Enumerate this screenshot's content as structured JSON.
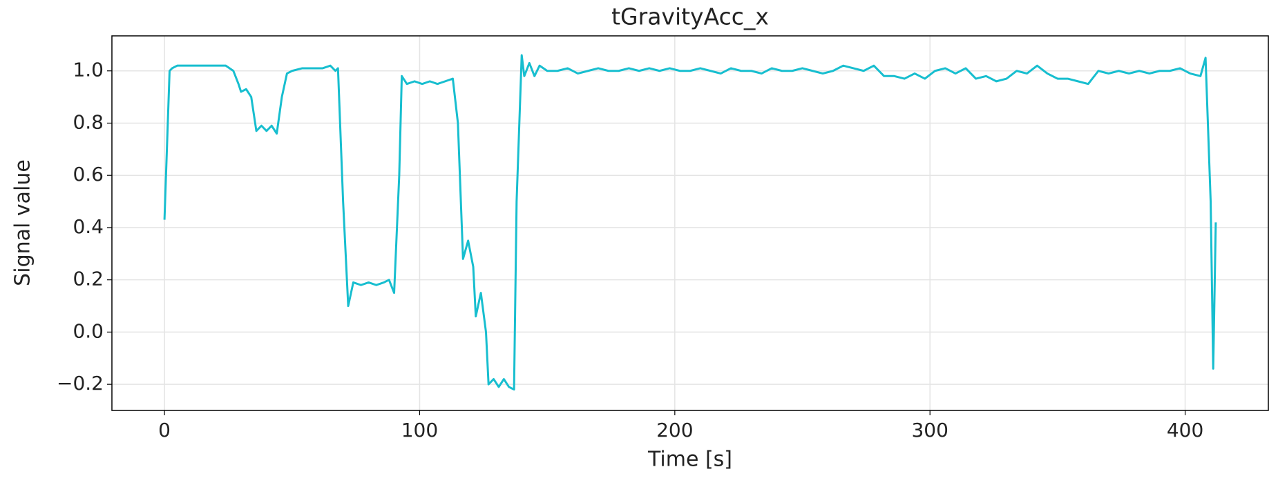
{
  "chart_data": {
    "type": "line",
    "title": "tGravityAcc_x",
    "xlabel": "Time [s]",
    "ylabel": "Signal value",
    "color": "#17becf",
    "grid": true,
    "xlim": [
      -20.6,
      432.6
    ],
    "ylim": [
      -0.3,
      1.134
    ],
    "xticks": [
      0,
      100,
      200,
      300,
      400
    ],
    "yticks": [
      {
        "value": -0.2,
        "label": "−0.2"
      },
      {
        "value": 0,
        "label": "0.0"
      },
      {
        "value": 0.2,
        "label": "0.2"
      },
      {
        "value": 0.4,
        "label": "0.4"
      },
      {
        "value": 0.6,
        "label": "0.6"
      },
      {
        "value": 0.8,
        "label": "0.8"
      },
      {
        "value": 1.0,
        "label": "1.0"
      }
    ],
    "x": [
      0,
      2,
      3,
      5,
      8,
      12,
      16,
      20,
      24,
      27,
      29,
      30,
      32,
      34,
      36,
      38,
      40,
      42,
      44,
      46,
      48,
      50,
      54,
      58,
      62,
      65,
      67,
      68,
      70,
      72,
      74,
      77,
      80,
      83,
      86,
      88,
      90,
      92,
      93,
      95,
      98,
      101,
      104,
      107,
      110,
      113,
      115,
      117,
      119,
      121,
      122,
      124,
      126,
      127,
      129,
      131,
      133,
      135,
      137,
      138,
      140,
      141,
      143,
      145,
      147,
      150,
      154,
      158,
      162,
      166,
      170,
      174,
      178,
      182,
      186,
      190,
      194,
      198,
      202,
      206,
      210,
      214,
      218,
      222,
      226,
      230,
      234,
      238,
      242,
      246,
      250,
      254,
      258,
      262,
      266,
      270,
      274,
      278,
      282,
      286,
      290,
      294,
      298,
      302,
      306,
      310,
      314,
      318,
      322,
      326,
      330,
      334,
      338,
      342,
      346,
      350,
      354,
      358,
      362,
      366,
      370,
      374,
      378,
      382,
      386,
      390,
      394,
      398,
      402,
      406,
      408,
      410,
      411,
      412
    ],
    "values": [
      0.43,
      1.0,
      1.01,
      1.02,
      1.02,
      1.02,
      1.02,
      1.02,
      1.02,
      1.0,
      0.95,
      0.92,
      0.93,
      0.9,
      0.77,
      0.79,
      0.77,
      0.79,
      0.76,
      0.9,
      0.99,
      1.0,
      1.01,
      1.01,
      1.01,
      1.02,
      1.0,
      1.01,
      0.5,
      0.1,
      0.19,
      0.18,
      0.19,
      0.18,
      0.19,
      0.2,
      0.15,
      0.6,
      0.98,
      0.95,
      0.96,
      0.95,
      0.96,
      0.95,
      0.96,
      0.97,
      0.8,
      0.28,
      0.35,
      0.25,
      0.06,
      0.15,
      0.0,
      -0.2,
      -0.18,
      -0.21,
      -0.18,
      -0.21,
      -0.22,
      0.5,
      1.06,
      0.98,
      1.03,
      0.98,
      1.02,
      1.0,
      1.0,
      1.01,
      0.99,
      1.0,
      1.01,
      1.0,
      1.0,
      1.01,
      1.0,
      1.01,
      1.0,
      1.01,
      1.0,
      1.0,
      1.01,
      1.0,
      0.99,
      1.01,
      1.0,
      1.0,
      0.99,
      1.01,
      1.0,
      1.0,
      1.01,
      1.0,
      0.99,
      1.0,
      1.02,
      1.01,
      1.0,
      1.02,
      0.98,
      0.98,
      0.97,
      0.99,
      0.97,
      1.0,
      1.01,
      0.99,
      1.01,
      0.97,
      0.98,
      0.96,
      0.97,
      1.0,
      0.99,
      1.02,
      0.99,
      0.97,
      0.97,
      0.96,
      0.95,
      1.0,
      0.99,
      1.0,
      0.99,
      1.0,
      0.99,
      1.0,
      1.0,
      1.01,
      0.99,
      0.98,
      1.05,
      0.5,
      -0.14,
      0.42
    ]
  }
}
